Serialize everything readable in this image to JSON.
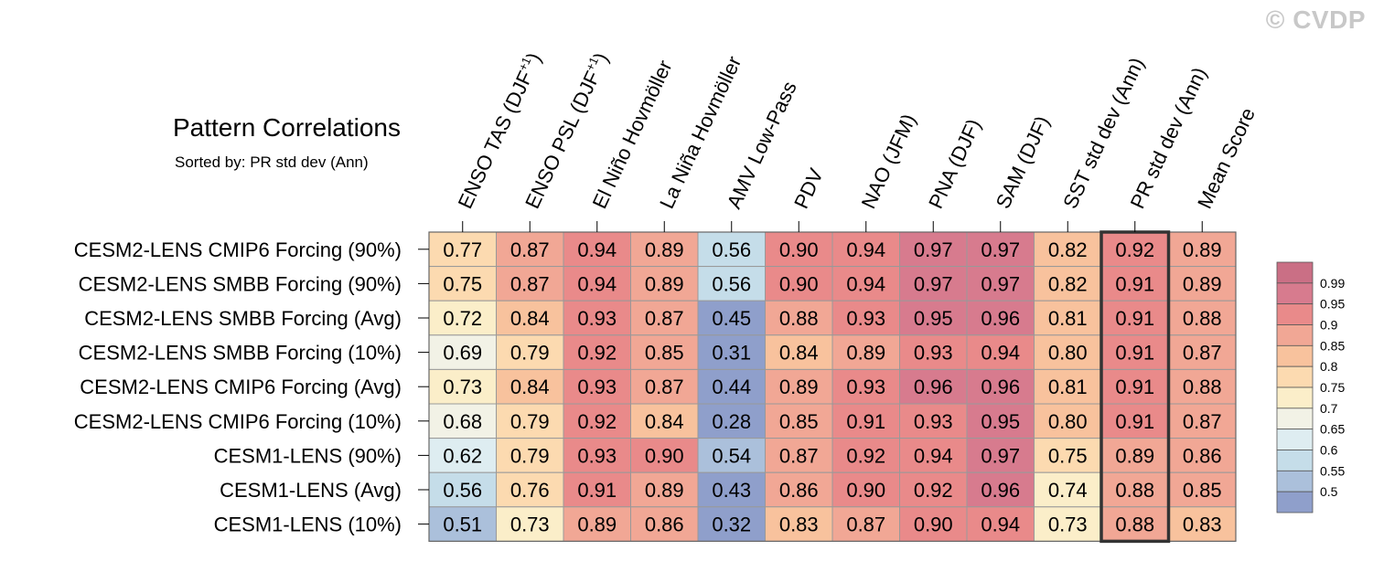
{
  "watermark": "© CVDP",
  "title": "Pattern Correlations",
  "subtitle": "Sorted by: PR std dev (Ann)",
  "chart_data": {
    "type": "heatmap",
    "columns": [
      {
        "base": "ENSO TAS (DJF",
        "sup": "+1",
        "tail": ")"
      },
      {
        "base": "ENSO PSL (DJF",
        "sup": "+1",
        "tail": ")"
      },
      {
        "base": "El Niño Hovmöller"
      },
      {
        "base": "La Niña Hovmöller"
      },
      {
        "base": "AMV Low-Pass"
      },
      {
        "base": "PDV"
      },
      {
        "base": "NAO (JFM)"
      },
      {
        "base": "PNA (DJF)"
      },
      {
        "base": "SAM (DJF)"
      },
      {
        "base": "SST std dev (Ann)"
      },
      {
        "base": "PR std dev (Ann)"
      },
      {
        "base": "Mean Score"
      }
    ],
    "rows": [
      "CESM2-LENS CMIP6 Forcing (90%)",
      "CESM2-LENS SMBB Forcing (90%)",
      "CESM2-LENS SMBB Forcing (Avg)",
      "CESM2-LENS SMBB Forcing (10%)",
      "CESM2-LENS CMIP6 Forcing (Avg)",
      "CESM2-LENS CMIP6 Forcing (10%)",
      "CESM1-LENS (90%)",
      "CESM1-LENS (Avg)",
      "CESM1-LENS (10%)"
    ],
    "values": [
      [
        "0.77",
        "0.87",
        "0.94",
        "0.89",
        "0.56",
        "0.90",
        "0.94",
        "0.97",
        "0.97",
        "0.82",
        "0.92",
        "0.89"
      ],
      [
        "0.75",
        "0.87",
        "0.94",
        "0.89",
        "0.56",
        "0.90",
        "0.94",
        "0.97",
        "0.97",
        "0.82",
        "0.91",
        "0.89"
      ],
      [
        "0.72",
        "0.84",
        "0.93",
        "0.87",
        "0.45",
        "0.88",
        "0.93",
        "0.95",
        "0.96",
        "0.81",
        "0.91",
        "0.88"
      ],
      [
        "0.69",
        "0.79",
        "0.92",
        "0.85",
        "0.31",
        "0.84",
        "0.89",
        "0.93",
        "0.94",
        "0.80",
        "0.91",
        "0.87"
      ],
      [
        "0.73",
        "0.84",
        "0.93",
        "0.87",
        "0.44",
        "0.89",
        "0.93",
        "0.96",
        "0.96",
        "0.81",
        "0.91",
        "0.88"
      ],
      [
        "0.68",
        "0.79",
        "0.92",
        "0.84",
        "0.28",
        "0.85",
        "0.91",
        "0.93",
        "0.95",
        "0.80",
        "0.91",
        "0.87"
      ],
      [
        "0.62",
        "0.79",
        "0.93",
        "0.90",
        "0.54",
        "0.87",
        "0.92",
        "0.94",
        "0.97",
        "0.75",
        "0.89",
        "0.86"
      ],
      [
        "0.56",
        "0.76",
        "0.91",
        "0.89",
        "0.43",
        "0.86",
        "0.90",
        "0.92",
        "0.96",
        "0.74",
        "0.88",
        "0.85"
      ],
      [
        "0.51",
        "0.73",
        "0.89",
        "0.86",
        "0.32",
        "0.83",
        "0.87",
        "0.90",
        "0.94",
        "0.73",
        "0.88",
        "0.83"
      ]
    ],
    "sorted_column": "PR std dev (Ann)",
    "legend": {
      "position": "right",
      "labels": [
        "0.99",
        "0.95",
        "0.9",
        "0.85",
        "0.8",
        "0.75",
        "0.7",
        "0.65",
        "0.6",
        "0.55",
        "0.5"
      ],
      "thresholds": [
        0.5,
        0.55,
        0.6,
        0.65,
        0.7,
        0.75,
        0.8,
        0.85,
        0.9,
        0.95,
        0.99
      ],
      "colors": [
        "#8f9fcb",
        "#abc0db",
        "#c5dde9",
        "#deedf1",
        "#f2f2e6",
        "#fbeec9",
        "#fcdab0",
        "#f8c29d",
        "#f1a795",
        "#e98a8a",
        "#d77b8e",
        "#ca6f85"
      ]
    },
    "colors": {
      "grid_line": "#999999",
      "highlight_border": "#333333",
      "text": "#000000"
    }
  }
}
